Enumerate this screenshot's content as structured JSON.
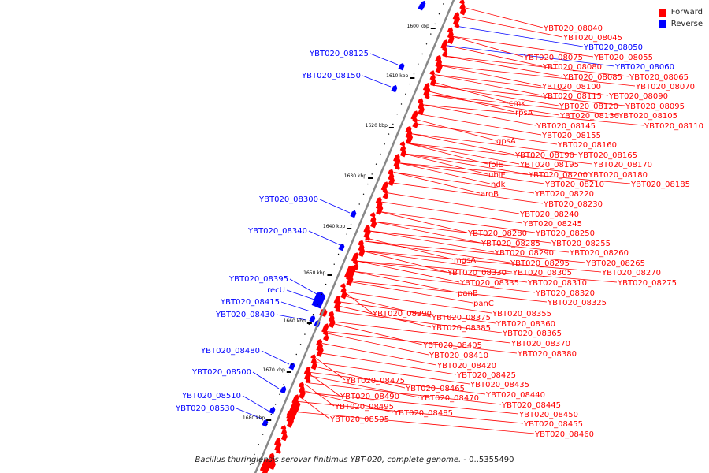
{
  "colors": {
    "forward": "#ff0000",
    "reverse": "#0000ff",
    "axis": "#888888",
    "tick": "#000000",
    "label_text": "#000000"
  },
  "legend": [
    {
      "label": "Forward",
      "color": "#ff0000"
    },
    {
      "label": "Reverse",
      "color": "#0000ff"
    }
  ],
  "caption": {
    "organism": "Bacillus thuringiensis serovar finitimus YBT-020, complete genome.",
    "range": " - 0..5355490"
  },
  "axis_ticks": [
    "1600 kbp",
    "1610 kbp",
    "1620 kbp",
    "1630 kbp",
    "1640 kbp",
    "1650 kbp",
    "1660 kbp",
    "1670 kbp",
    "1680 kbp"
  ],
  "reverse_labels": [
    "YBT020_08125",
    "YBT020_08150",
    "YBT020_08300",
    "YBT020_08340",
    "YBT020_08395",
    "recU",
    "YBT020_08415",
    "YBT020_08430",
    "YBT020_08480",
    "YBT020_08500",
    "YBT020_08510",
    "YBT020_08530"
  ],
  "forward_labels": [
    "YBT020_08040",
    "YBT020_08045",
    "YBT020_08050",
    "YBT020_08075",
    "YBT020_08055",
    "YBT020_08080",
    "YBT020_08060",
    "YBT020_08085",
    "YBT020_08065",
    "YBT020_08100",
    "YBT020_08070",
    "YBT020_08115",
    "YBT020_08090",
    "cmk",
    "YBT020_08120",
    "YBT020_08095",
    "rpsA",
    "YBT020_08130",
    "YBT020_08105",
    "YBT020_08145",
    "YBT020_08110",
    "YBT020_08155",
    "gpsA",
    "YBT020_08160",
    "YBT020_08190",
    "YBT020_08165",
    "folE",
    "YBT020_08195",
    "YBT020_08170",
    "ubiE",
    "YBT020_08200",
    "YBT020_08180",
    "ndk",
    "YBT020_08210",
    "YBT020_08185",
    "aroB",
    "YBT020_08220",
    "YBT020_08230",
    "YBT020_08240",
    "YBT020_08245",
    "YBT020_08280",
    "YBT020_08250",
    "YBT020_08285",
    "YBT020_08255",
    "YBT020_08290",
    "YBT020_08260",
    "mgsA",
    "YBT020_08295",
    "YBT020_08265",
    "YBT020_08330",
    "YBT020_08305",
    "YBT020_08270",
    "YBT020_08335",
    "YBT020_08310",
    "YBT020_08275",
    "panB",
    "YBT020_08320",
    "panC",
    "YBT020_08325",
    "YBT020_08390",
    "YBT020_08355",
    "YBT020_08375",
    "YBT020_08360",
    "YBT020_08385",
    "YBT020_08365",
    "YBT020_08370",
    "YBT020_08405",
    "YBT020_08380",
    "YBT020_08410",
    "YBT020_08420",
    "YBT020_08425",
    "YBT020_08475",
    "YBT020_08435",
    "YBT020_08465",
    "YBT020_08440",
    "YBT020_08490",
    "YBT020_08470",
    "YBT020_08445",
    "YBT020_08495",
    "YBT020_08485",
    "YBT020_08450",
    "YBT020_08505",
    "YBT020_08455",
    "YBT020_08460"
  ],
  "blue_labeled_forward": [
    "YBT020_08050",
    "YBT020_08060"
  ]
}
